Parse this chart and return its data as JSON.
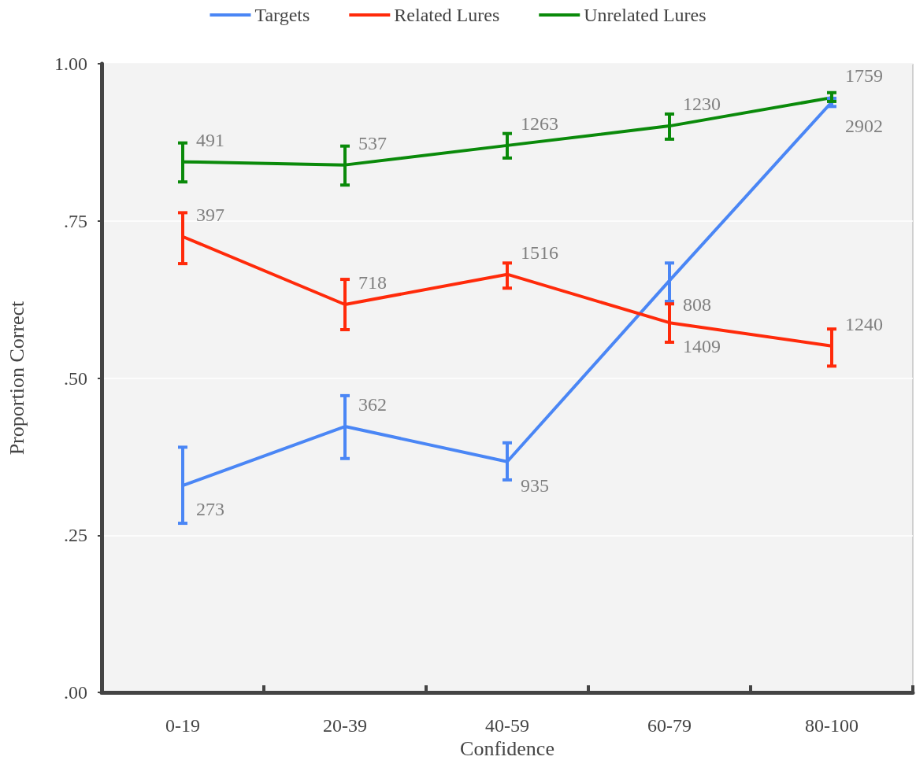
{
  "chart_data": {
    "type": "line",
    "xlabel": "Confidence",
    "ylabel": "Proportion Correct",
    "categories": [
      "0-19",
      "20-39",
      "40-59",
      "60-79",
      "80-100"
    ],
    "ylim": [
      0,
      1
    ],
    "yticks": [
      {
        "value": 0,
        "label": ".00"
      },
      {
        "value": 0.25,
        "label": ".25"
      },
      {
        "value": 0.5,
        "label": ".50"
      },
      {
        "value": 0.75,
        "label": ".75"
      },
      {
        "value": 1,
        "label": "1.00"
      }
    ],
    "series": [
      {
        "name": "Targets",
        "color": "#4a86f5",
        "values": [
          0.329,
          0.423,
          0.367,
          0.655,
          0.939
        ],
        "errors": [
          [
            0.269,
            0.39
          ],
          [
            0.372,
            0.472
          ],
          [
            0.338,
            0.397
          ],
          [
            0.622,
            0.683
          ],
          [
            0.932,
            0.945
          ]
        ]
      },
      {
        "name": "Related Lures",
        "color": "#ff2a0a",
        "values": [
          0.725,
          0.617,
          0.665,
          0.588,
          0.551
        ],
        "errors": [
          [
            0.682,
            0.763
          ],
          [
            0.577,
            0.657
          ],
          [
            0.643,
            0.683
          ],
          [
            0.557,
            0.618
          ],
          [
            0.519,
            0.578
          ]
        ]
      },
      {
        "name": "Unrelated Lures",
        "color": "#0a8a0a",
        "values": [
          0.844,
          0.839,
          0.87,
          0.901,
          0.946
        ],
        "errors": [
          [
            0.812,
            0.874
          ],
          [
            0.807,
            0.869
          ],
          [
            0.85,
            0.889
          ],
          [
            0.88,
            0.92
          ],
          [
            0.94,
            0.954
          ]
        ]
      }
    ],
    "annotations": [
      {
        "text": "273",
        "x": "0-19",
        "y": 0.329
      },
      {
        "text": "362",
        "x": "20-39",
        "y": 0.423
      },
      {
        "text": "935",
        "x": "40-59",
        "y": 0.367
      },
      {
        "text": "808",
        "x": "60-79",
        "y": 0.655
      },
      {
        "text": "2902",
        "x": "80-100",
        "y": 0.939
      },
      {
        "text": "397",
        "x": "0-19",
        "y": 0.725
      },
      {
        "text": "718",
        "x": "20-39",
        "y": 0.617
      },
      {
        "text": "1516",
        "x": "40-59",
        "y": 0.665
      },
      {
        "text": "1409",
        "x": "60-79",
        "y": 0.588
      },
      {
        "text": "1240",
        "x": "80-100",
        "y": 0.551
      },
      {
        "text": "491",
        "x": "0-19",
        "y": 0.844
      },
      {
        "text": "537",
        "x": "20-39",
        "y": 0.839
      },
      {
        "text": "1263",
        "x": "40-59",
        "y": 0.87
      },
      {
        "text": "1230",
        "x": "60-79",
        "y": 0.901
      },
      {
        "text": "1759",
        "x": "80-100",
        "y": 0.946
      }
    ],
    "grid": "y",
    "legend": "top",
    "marker": "none",
    "line_style": "solid"
  }
}
